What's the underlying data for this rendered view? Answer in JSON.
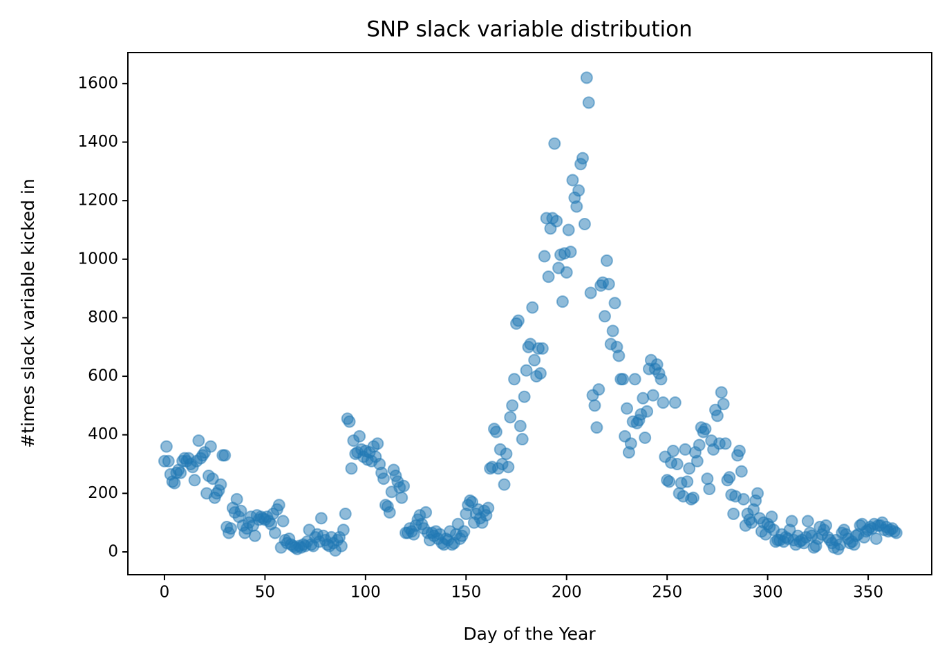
{
  "chart_data": {
    "type": "scatter",
    "title": "SNP slack variable distribution",
    "x_label": "Day of the Year",
    "y_label": "#times slack variable kicked in",
    "color": "#1f77b4",
    "alpha": 0.5,
    "xlim": [
      -18.2,
      381.6
    ],
    "ylim": [
      -78,
      1706
    ],
    "xticks": [
      0,
      50,
      100,
      150,
      200,
      250,
      300,
      350
    ],
    "yticks": [
      0,
      200,
      400,
      600,
      800,
      1000,
      1200,
      1400,
      1600
    ],
    "x": [
      0,
      1,
      2,
      3,
      4,
      5,
      6,
      7,
      8,
      9,
      10,
      11,
      12,
      13,
      14,
      15,
      16,
      17,
      18,
      19,
      20,
      21,
      22,
      23,
      24,
      25,
      26,
      27,
      28,
      29,
      30,
      31,
      32,
      33,
      34,
      35,
      36,
      37,
      38,
      39,
      40,
      41,
      42,
      43,
      44,
      45,
      46,
      47,
      48,
      49,
      50,
      51,
      52,
      53,
      54,
      55,
      56,
      57,
      58,
      59,
      60,
      61,
      62,
      63,
      64,
      65,
      66,
      67,
      68,
      69,
      70,
      71,
      72,
      73,
      74,
      75,
      76,
      77,
      78,
      79,
      80,
      81,
      82,
      83,
      84,
      85,
      86,
      87,
      88,
      89,
      90,
      91,
      92,
      93,
      94,
      95,
      96,
      97,
      98,
      99,
      100,
      101,
      102,
      103,
      104,
      105,
      106,
      107,
      108,
      109,
      110,
      111,
      112,
      113,
      114,
      115,
      116,
      117,
      118,
      119,
      120,
      121,
      122,
      123,
      124,
      125,
      126,
      127,
      128,
      129,
      130,
      131,
      132,
      133,
      134,
      135,
      136,
      137,
      138,
      139,
      140,
      141,
      142,
      143,
      144,
      145,
      146,
      147,
      148,
      149,
      150,
      151,
      152,
      153,
      154,
      155,
      156,
      157,
      158,
      159,
      160,
      161,
      162,
      163,
      164,
      165,
      166,
      167,
      168,
      169,
      170,
      171,
      172,
      173,
      174,
      175,
      176,
      177,
      178,
      179,
      180,
      181,
      182,
      183,
      184,
      185,
      186,
      187,
      188,
      189,
      190,
      191,
      192,
      193,
      194,
      195,
      196,
      197,
      198,
      199,
      200,
      201,
      202,
      203,
      204,
      205,
      206,
      207,
      208,
      209,
      210,
      211,
      212,
      213,
      214,
      215,
      216,
      217,
      218,
      219,
      220,
      221,
      222,
      223,
      224,
      225,
      226,
      227,
      228,
      229,
      230,
      231,
      232,
      233,
      234,
      235,
      236,
      237,
      238,
      239,
      240,
      241,
      242,
      243,
      244,
      245,
      246,
      247,
      248,
      249,
      250,
      251,
      252,
      253,
      254,
      255,
      256,
      257,
      258,
      259,
      260,
      261,
      262,
      263,
      264,
      265,
      266,
      267,
      268,
      269,
      270,
      271,
      272,
      273,
      274,
      275,
      276,
      277,
      278,
      279,
      280,
      281,
      282,
      283,
      284,
      285,
      286,
      287,
      288,
      289,
      290,
      291,
      292,
      293,
      294,
      295,
      296,
      297,
      298,
      299,
      300,
      301,
      302,
      303,
      304,
      305,
      306,
      307,
      308,
      309,
      310,
      311,
      312,
      313,
      314,
      315,
      316,
      317,
      318,
      319,
      320,
      321,
      322,
      323,
      324,
      325,
      326,
      327,
      328,
      329,
      330,
      331,
      332,
      333,
      334,
      335,
      336,
      337,
      338,
      339,
      340,
      341,
      342,
      343,
      344,
      345,
      346,
      347,
      348,
      349,
      350,
      351,
      352,
      353,
      354,
      355,
      356,
      357,
      358,
      359,
      360,
      361,
      362,
      363,
      364
    ],
    "values": [
      310,
      360,
      310,
      265,
      240,
      235,
      270,
      280,
      270,
      310,
      320,
      310,
      320,
      300,
      290,
      245,
      310,
      380,
      320,
      330,
      340,
      200,
      260,
      360,
      250,
      185,
      200,
      210,
      230,
      330,
      330,
      85,
      65,
      80,
      150,
      135,
      180,
      120,
      140,
      90,
      65,
      80,
      100,
      120,
      90,
      55,
      125,
      110,
      120,
      115,
      110,
      120,
      105,
      95,
      130,
      65,
      145,
      160,
      15,
      105,
      40,
      30,
      45,
      25,
      20,
      15,
      10,
      20,
      15,
      25,
      20,
      35,
      75,
      25,
      20,
      50,
      60,
      35,
      115,
      55,
      40,
      25,
      20,
      50,
      30,
      5,
      40,
      50,
      20,
      75,
      130,
      455,
      445,
      285,
      380,
      335,
      340,
      395,
      350,
      325,
      345,
      315,
      340,
      310,
      360,
      325,
      370,
      300,
      270,
      250,
      160,
      155,
      135,
      205,
      280,
      260,
      240,
      220,
      185,
      225,
      65,
      65,
      80,
      70,
      60,
      90,
      110,
      125,
      95,
      80,
      135,
      65,
      40,
      65,
      55,
      70,
      45,
      60,
      30,
      25,
      45,
      40,
      70,
      25,
      30,
      60,
      95,
      45,
      55,
      70,
      130,
      160,
      175,
      170,
      100,
      130,
      145,
      115,
      100,
      140,
      125,
      150,
      285,
      290,
      420,
      410,
      285,
      350,
      300,
      230,
      335,
      290,
      460,
      500,
      590,
      780,
      790,
      430,
      385,
      530,
      620,
      700,
      710,
      835,
      655,
      600,
      695,
      610,
      695,
      1010,
      1140,
      940,
      1105,
      1140,
      1395,
      1130,
      970,
      1015,
      855,
      1020,
      955,
      1100,
      1025,
      1270,
      1210,
      1180,
      1235,
      1325,
      1345,
      1120,
      1620,
      1535,
      885,
      535,
      500,
      425,
      555,
      910,
      920,
      805,
      995,
      915,
      710,
      755,
      850,
      700,
      670,
      590,
      590,
      395,
      490,
      340,
      370,
      445,
      590,
      440,
      450,
      470,
      525,
      390,
      480,
      625,
      655,
      535,
      625,
      640,
      610,
      590,
      510,
      325,
      245,
      240,
      305,
      345,
      510,
      300,
      200,
      235,
      190,
      350,
      240,
      285,
      180,
      185,
      340,
      310,
      365,
      425,
      410,
      420,
      250,
      215,
      380,
      350,
      485,
      465,
      370,
      545,
      505,
      370,
      245,
      255,
      195,
      130,
      190,
      330,
      345,
      275,
      180,
      90,
      130,
      110,
      100,
      145,
      175,
      200,
      115,
      70,
      100,
      60,
      95,
      85,
      120,
      75,
      35,
      40,
      40,
      60,
      35,
      50,
      45,
      75,
      105,
      40,
      25,
      55,
      35,
      40,
      30,
      50,
      105,
      65,
      55,
      15,
      20,
      45,
      85,
      60,
      75,
      90,
      50,
      40,
      30,
      15,
      40,
      10,
      25,
      65,
      75,
      60,
      45,
      30,
      35,
      25,
      55,
      60,
      90,
      95,
      50,
      70,
      75,
      85,
      80,
      95,
      45,
      90,
      90,
      100,
      75,
      85,
      70,
      75,
      80,
      70,
      65
    ]
  }
}
